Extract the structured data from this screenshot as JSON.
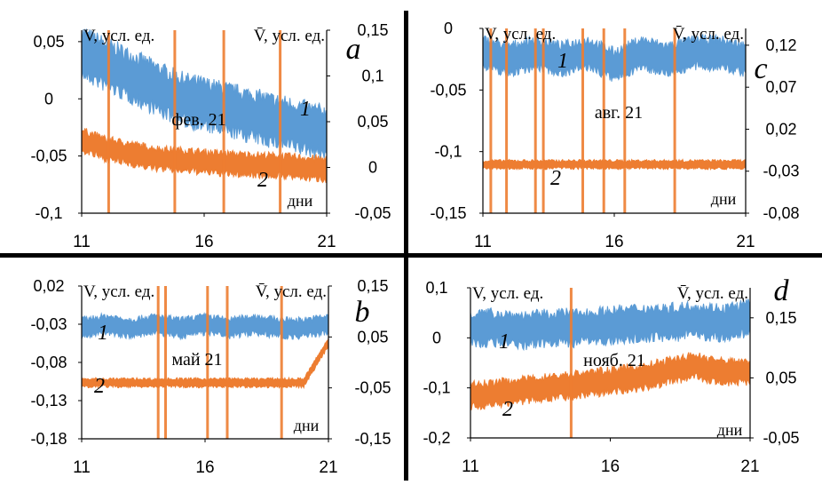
{
  "figure": {
    "colors": {
      "series1": "#5b9bd5",
      "series2": "#ed7d31",
      "divider": "#000000"
    }
  },
  "chart_data": [
    {
      "type": "line",
      "panel_letter": "a",
      "month_label": "фев. 21",
      "xlabel": "дни",
      "ylabel_left": "V, усл. ед.",
      "ylabel_right": "V̄, усл. ед.",
      "x_ticks": [
        "11",
        "16",
        "21"
      ],
      "xlim": [
        11,
        21
      ],
      "ylim_left": [
        -0.1,
        0.06
      ],
      "y_ticks_left": [
        "0,05",
        "0",
        "-0,05",
        "-0,1"
      ],
      "y_tick_values_left": [
        0.05,
        0,
        -0.05,
        -0.1
      ],
      "ylim_right": [
        -0.05,
        0.15
      ],
      "y_ticks_right": [
        "0,15",
        "0,1",
        "0,05",
        "0",
        "-0,05"
      ],
      "y_tick_values_right": [
        0.15,
        0.1,
        0.05,
        0,
        -0.05
      ],
      "series": [
        {
          "label": "1",
          "axis": "left",
          "color": "#5b9bd5",
          "x": [
            11,
            12,
            13,
            14,
            15,
            16,
            17,
            18,
            19,
            20,
            21
          ],
          "y": [
            0.04,
            0.03,
            0.02,
            0.01,
            0.0,
            -0.005,
            -0.01,
            -0.015,
            -0.02,
            -0.025,
            -0.03
          ],
          "band": 0.025
        },
        {
          "label": "2",
          "axis": "right",
          "color": "#ed7d31",
          "x": [
            11,
            12,
            13,
            14,
            15,
            16,
            17,
            18,
            19,
            20,
            21
          ],
          "y": [
            0.03,
            0.02,
            0.015,
            0.01,
            0.008,
            0.006,
            0.004,
            0.003,
            0.002,
            0.0,
            -0.002
          ],
          "band": 0.015
        }
      ],
      "spikes": [
        12.1,
        14.8,
        16.8,
        19.1
      ]
    },
    {
      "type": "line",
      "panel_letter": "c",
      "month_label": "авг. 21",
      "xlabel": "дни",
      "ylabel_left": "V, усл. ед.",
      "ylabel_right": "V̄, усл. ед.",
      "x_ticks": [
        "11",
        "16",
        "21"
      ],
      "xlim": [
        11,
        21
      ],
      "ylim_left": [
        -0.15,
        0.0
      ],
      "y_ticks_left": [
        "0",
        "-0,05",
        "-0,1",
        "-0,15"
      ],
      "y_tick_values_left": [
        0,
        -0.05,
        -0.1,
        -0.15
      ],
      "ylim_right": [
        -0.08,
        0.14
      ],
      "y_ticks_right": [
        "0,12",
        "0,07",
        "0,02",
        "-0,03",
        "-0,08"
      ],
      "y_tick_values_right": [
        0.12,
        0.07,
        0.02,
        -0.03,
        -0.08
      ],
      "series": [
        {
          "label": "1",
          "axis": "left",
          "color": "#5b9bd5",
          "x": [
            11,
            12,
            13,
            14,
            15,
            16,
            17,
            18,
            19,
            20,
            21
          ],
          "y": [
            -0.02,
            -0.025,
            -0.02,
            -0.025,
            -0.02,
            -0.03,
            -0.02,
            -0.025,
            -0.02,
            -0.02,
            -0.025
          ],
          "band": 0.015
        },
        {
          "label": "2",
          "axis": "right",
          "color": "#ed7d31",
          "x": [
            11,
            12,
            13,
            14,
            15,
            16,
            17,
            18,
            19,
            20,
            21
          ],
          "y": [
            -0.022,
            -0.022,
            -0.022,
            -0.022,
            -0.022,
            -0.022,
            -0.022,
            -0.022,
            -0.022,
            -0.022,
            -0.022
          ],
          "band": 0.006
        }
      ],
      "spikes": [
        11.3,
        11.9,
        13.0,
        13.3,
        14.8,
        15.6,
        16.4,
        18.3
      ]
    },
    {
      "type": "line",
      "panel_letter": "b",
      "month_label": "май 21",
      "xlabel": "дни",
      "ylabel_left": "V, усл. ед.",
      "ylabel_right": "V̄, усл. ед.",
      "x_ticks": [
        "11",
        "16",
        "21"
      ],
      "xlim": [
        11,
        21
      ],
      "ylim_left": [
        -0.18,
        0.02
      ],
      "y_ticks_left": [
        "0,02",
        "-0,03",
        "-0,08",
        "-0,13",
        "-0,18"
      ],
      "y_tick_values_left": [
        0.02,
        -0.03,
        -0.08,
        -0.13,
        -0.18
      ],
      "ylim_right": [
        -0.15,
        0.15
      ],
      "y_ticks_right": [
        "0,15",
        "0,05",
        "-0,05",
        "-0,15"
      ],
      "y_tick_values_right": [
        0.15,
        0.05,
        -0.05,
        -0.15
      ],
      "series": [
        {
          "label": "1",
          "axis": "left",
          "color": "#5b9bd5",
          "x": [
            11,
            12,
            13,
            14,
            15,
            16,
            17,
            18,
            19,
            20,
            21
          ],
          "y": [
            -0.035,
            -0.03,
            -0.035,
            -0.03,
            -0.035,
            -0.03,
            -0.035,
            -0.03,
            -0.035,
            -0.035,
            -0.03
          ],
          "band": 0.015
        },
        {
          "label": "2",
          "axis": "right",
          "color": "#ed7d31",
          "x": [
            11,
            12,
            13,
            14,
            15,
            16,
            17,
            18,
            19,
            20,
            21
          ],
          "y": [
            -0.04,
            -0.04,
            -0.04,
            -0.04,
            -0.04,
            -0.04,
            -0.04,
            -0.04,
            -0.04,
            -0.04,
            0.04
          ],
          "band": 0.01
        }
      ],
      "spikes": [
        14.1,
        14.4,
        16.1,
        16.9,
        19.1
      ]
    },
    {
      "type": "line",
      "panel_letter": "d",
      "month_label": "нояб. 21",
      "xlabel": "дни",
      "ylabel_left": "V, усл. ед.",
      "ylabel_right": "V̄, усл. ед.",
      "x_ticks": [
        "11",
        "16",
        "21"
      ],
      "xlim": [
        11,
        21
      ],
      "ylim_left": [
        -0.2,
        0.1
      ],
      "y_ticks_left": [
        "0,1",
        "0",
        "-0,1",
        "-0,2"
      ],
      "y_tick_values_left": [
        0.1,
        0,
        -0.1,
        -0.2
      ],
      "ylim_right": [
        -0.05,
        0.2
      ],
      "y_ticks_right": [
        "0,15",
        "0,05",
        "-0,05"
      ],
      "y_tick_values_right": [
        0.15,
        0.05,
        -0.05
      ],
      "series": [
        {
          "label": "1",
          "axis": "left",
          "color": "#5b9bd5",
          "x": [
            11,
            12,
            13,
            14,
            15,
            16,
            17,
            18,
            19,
            20,
            21
          ],
          "y": [
            0.02,
            0.02,
            0.015,
            0.02,
            0.02,
            0.025,
            0.03,
            0.03,
            0.035,
            0.03,
            0.04
          ],
          "band": 0.04
        },
        {
          "label": "2",
          "axis": "right",
          "color": "#ed7d31",
          "x": [
            11,
            12,
            13,
            14,
            15,
            16,
            17,
            18,
            19,
            20,
            21
          ],
          "y": [
            0.02,
            0.025,
            0.03,
            0.035,
            0.04,
            0.045,
            0.05,
            0.06,
            0.07,
            0.06,
            0.06
          ],
          "band": 0.025
        }
      ],
      "spikes": [
        14.6
      ]
    }
  ]
}
